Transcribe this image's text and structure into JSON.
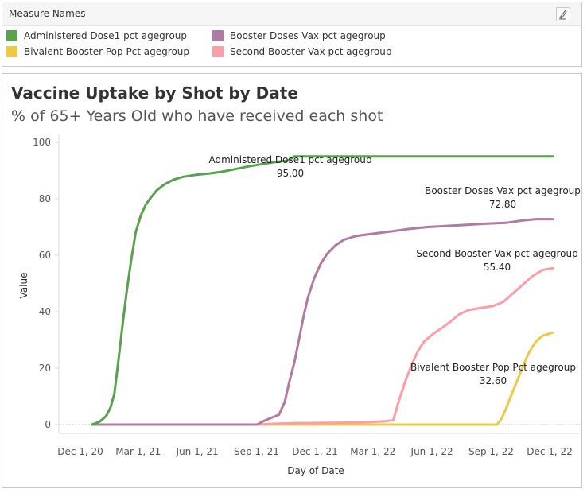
{
  "legend": {
    "title": "Measure Names",
    "edit_icon": "pen-icon",
    "items": [
      {
        "label": "Administered Dose1 pct agegroup",
        "color": "#59a14f"
      },
      {
        "label": "Booster Doses Vax pct agegroup",
        "color": "#b07aa1"
      },
      {
        "label": "Bivalent Booster Pop Pct agegroup",
        "color": "#edc948"
      },
      {
        "label": "Second Booster Vax pct agegroup",
        "color": "#ff9da7"
      }
    ]
  },
  "chart_data": {
    "type": "line",
    "title": "Vaccine Uptake by Shot by Date",
    "subtitle": "% of 65+ Years Old who have received each shot",
    "xlabel": "Day of Date",
    "ylabel": "Value",
    "ylim": [
      0,
      100
    ],
    "yticks": [
      0,
      20,
      40,
      60,
      80,
      100
    ],
    "xlim": [
      "2020-12-01",
      "2022-12-01"
    ],
    "xticks": [
      {
        "date": "2020-12-01",
        "label": "Dec 1, 20"
      },
      {
        "date": "2021-03-01",
        "label": "Mar 1, 21"
      },
      {
        "date": "2021-06-01",
        "label": "Jun 1, 21"
      },
      {
        "date": "2021-09-01",
        "label": "Sep 1, 21"
      },
      {
        "date": "2021-12-01",
        "label": "Dec 1, 21"
      },
      {
        "date": "2022-03-01",
        "label": "Mar 1, 22"
      },
      {
        "date": "2022-06-01",
        "label": "Jun 1, 22"
      },
      {
        "date": "2022-09-01",
        "label": "Sep 1, 22"
      },
      {
        "date": "2022-12-01",
        "label": "Dec 1, 22"
      }
    ],
    "grid": false,
    "zero_line": true,
    "series": [
      {
        "name": "Administered Dose1 pct agegroup",
        "color": "#59a14f",
        "annotation": {
          "label": "Administered Dose1 pct agegroup",
          "value": "95.00"
        },
        "points": [
          [
            "2020-12-14",
            0
          ],
          [
            "2020-12-26",
            1
          ],
          [
            "2021-01-05",
            3
          ],
          [
            "2021-01-12",
            6
          ],
          [
            "2021-01-18",
            11
          ],
          [
            "2021-01-24",
            22
          ],
          [
            "2021-01-30",
            34
          ],
          [
            "2021-02-06",
            47
          ],
          [
            "2021-02-13",
            58
          ],
          [
            "2021-02-20",
            68
          ],
          [
            "2021-02-28",
            74
          ],
          [
            "2021-03-08",
            78
          ],
          [
            "2021-03-16",
            80.5
          ],
          [
            "2021-03-25",
            83
          ],
          [
            "2021-04-05",
            85
          ],
          [
            "2021-04-20",
            86.8
          ],
          [
            "2021-05-05",
            87.8
          ],
          [
            "2021-05-25",
            88.5
          ],
          [
            "2021-06-15",
            89
          ],
          [
            "2021-07-05",
            89.6
          ],
          [
            "2021-07-25",
            90.5
          ],
          [
            "2021-08-15",
            91.5
          ],
          [
            "2021-09-05",
            92.3
          ],
          [
            "2021-09-25",
            93
          ],
          [
            "2021-10-15",
            93.5
          ],
          [
            "2021-10-25",
            95
          ],
          [
            "2021-11-15",
            95
          ],
          [
            "2022-03-01",
            95
          ],
          [
            "2022-06-01",
            95
          ],
          [
            "2022-09-01",
            95
          ],
          [
            "2022-12-01",
            95
          ]
        ]
      },
      {
        "name": "Booster Doses Vax pct agegroup",
        "color": "#b07aa1",
        "annotation": {
          "label": "Booster Doses Vax pct agegroup",
          "value": "72.80"
        },
        "points": [
          [
            "2020-12-14",
            0
          ],
          [
            "2021-08-28",
            0
          ],
          [
            "2021-09-05",
            1
          ],
          [
            "2021-09-20",
            2.5
          ],
          [
            "2021-10-01",
            3.5
          ],
          [
            "2021-10-10",
            8
          ],
          [
            "2021-10-17",
            15
          ],
          [
            "2021-10-25",
            22
          ],
          [
            "2021-11-01",
            30
          ],
          [
            "2021-11-08",
            38
          ],
          [
            "2021-11-15",
            45
          ],
          [
            "2021-11-25",
            52
          ],
          [
            "2021-12-05",
            57
          ],
          [
            "2021-12-15",
            60.5
          ],
          [
            "2021-12-28",
            63.5
          ],
          [
            "2022-01-10",
            65.5
          ],
          [
            "2022-01-28",
            66.8
          ],
          [
            "2022-02-20",
            67.5
          ],
          [
            "2022-03-20",
            68.3
          ],
          [
            "2022-04-20",
            69.3
          ],
          [
            "2022-05-20",
            70
          ],
          [
            "2022-06-20",
            70.4
          ],
          [
            "2022-07-20",
            70.8
          ],
          [
            "2022-08-20",
            71.2
          ],
          [
            "2022-09-20",
            71.5
          ],
          [
            "2022-10-15",
            72.3
          ],
          [
            "2022-11-05",
            72.8
          ],
          [
            "2022-12-01",
            72.8
          ]
        ]
      },
      {
        "name": "Second Booster Vax pct agegroup",
        "color": "#ff9da7",
        "annotation": {
          "label": "Second Booster Vax pct agegroup",
          "value": "55.40"
        },
        "points": [
          [
            "2020-12-14",
            0
          ],
          [
            "2021-08-28",
            0
          ],
          [
            "2021-09-25",
            0.3
          ],
          [
            "2021-10-20",
            0.5
          ],
          [
            "2021-12-01",
            0.6
          ],
          [
            "2022-01-15",
            0.7
          ],
          [
            "2022-02-20",
            0.9
          ],
          [
            "2022-03-15",
            1.2
          ],
          [
            "2022-03-28",
            1.6
          ],
          [
            "2022-04-05",
            8
          ],
          [
            "2022-04-15",
            15
          ],
          [
            "2022-04-25",
            21
          ],
          [
            "2022-05-05",
            26
          ],
          [
            "2022-05-15",
            29.5
          ],
          [
            "2022-05-28",
            32
          ],
          [
            "2022-06-10",
            34
          ],
          [
            "2022-06-25",
            36.5
          ],
          [
            "2022-07-08",
            39
          ],
          [
            "2022-07-22",
            40.5
          ],
          [
            "2022-08-10",
            41.3
          ],
          [
            "2022-08-30",
            42
          ],
          [
            "2022-09-15",
            43.5
          ],
          [
            "2022-09-30",
            46.5
          ],
          [
            "2022-10-15",
            49.5
          ],
          [
            "2022-10-30",
            52.5
          ],
          [
            "2022-11-15",
            54.8
          ],
          [
            "2022-12-01",
            55.4
          ]
        ]
      },
      {
        "name": "Bivalent Booster Pop Pct agegroup",
        "color": "#edc948",
        "annotation": {
          "label": "Bivalent Booster Pop Pct agegroup",
          "value": "32.60"
        },
        "points": [
          [
            "2020-12-14",
            0
          ],
          [
            "2022-09-05",
            0
          ],
          [
            "2022-09-12",
            2
          ],
          [
            "2022-09-18",
            5
          ],
          [
            "2022-09-25",
            9
          ],
          [
            "2022-10-02",
            13
          ],
          [
            "2022-10-10",
            17.5
          ],
          [
            "2022-10-18",
            22
          ],
          [
            "2022-10-26",
            26
          ],
          [
            "2022-11-05",
            29.5
          ],
          [
            "2022-11-15",
            31.5
          ],
          [
            "2022-12-01",
            32.6
          ]
        ]
      }
    ]
  }
}
